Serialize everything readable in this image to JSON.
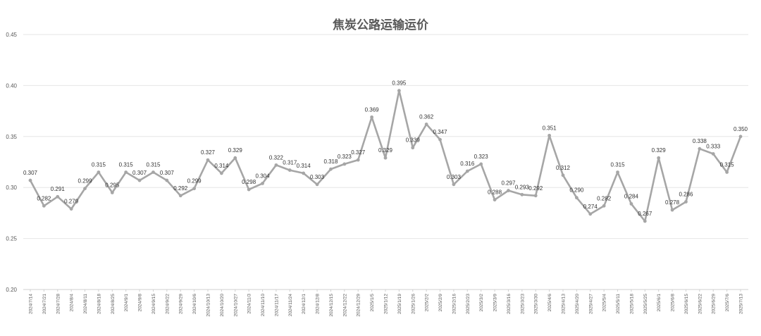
{
  "chart_data": {
    "type": "line",
    "title": "焦炭公路运输运价",
    "xlabel": "",
    "ylabel": "",
    "ylim": [
      0.2,
      0.45
    ],
    "yticks": [
      "0.20",
      "0.25",
      "0.30",
      "0.35",
      "0.40",
      "0.45"
    ],
    "grid": true,
    "legend": "none",
    "line_color": "#a6a6a6",
    "categories": [
      "2024/7/14",
      "2024/7/21",
      "2024/7/28",
      "2024/8/4",
      "2024/8/11",
      "2024/8/18",
      "2024/8/25",
      "2024/9/1",
      "2024/9/8",
      "2024/9/15",
      "2024/9/22",
      "2024/9/29",
      "2024/10/6",
      "2024/10/13",
      "2024/10/20",
      "2024/10/27",
      "2024/11/3",
      "2024/11/10",
      "2024/11/17",
      "2024/11/24",
      "2024/12/1",
      "2024/12/8",
      "2024/12/15",
      "2024/12/22",
      "2024/12/29",
      "2025/1/5",
      "2025/1/12",
      "2025/1/19",
      "2025/1/26",
      "2025/2/2",
      "2025/2/9",
      "2025/2/16",
      "2025/2/23",
      "2025/3/2",
      "2025/3/9",
      "2025/3/16",
      "2025/3/23",
      "2025/3/30",
      "2025/4/6",
      "2025/4/13",
      "2025/4/20",
      "2025/4/27",
      "2025/5/4",
      "2025/5/11",
      "2025/5/18",
      "2025/5/25",
      "2025/6/1",
      "2025/6/8",
      "2025/6/15",
      "2025/6/22",
      "2025/6/29",
      "2025/7/6",
      "2025/7/13"
    ],
    "values": [
      0.307,
      0.282,
      0.291,
      0.279,
      0.299,
      0.315,
      0.295,
      0.315,
      0.307,
      0.315,
      0.307,
      0.292,
      0.299,
      0.327,
      0.314,
      0.329,
      0.298,
      0.304,
      0.322,
      0.317,
      0.314,
      0.303,
      0.318,
      0.323,
      0.327,
      0.369,
      0.329,
      0.395,
      0.339,
      0.362,
      0.347,
      0.303,
      0.316,
      0.323,
      0.288,
      0.297,
      0.293,
      0.292,
      0.351,
      0.312,
      0.29,
      0.274,
      0.282,
      0.315,
      0.284,
      0.267,
      0.329,
      0.278,
      0.286,
      0.338,
      0.333,
      0.315,
      0.35
    ],
    "labels": [
      "0.307",
      "0.282",
      "0.291",
      "0.279",
      "0.299",
      "0.315",
      "0.295",
      "0.315",
      "0.307",
      "0.315",
      "0.307",
      "0.292",
      "0.299",
      "0.327",
      "0.314",
      "0.329",
      "0.298",
      "0.304",
      "0.322",
      "0.317",
      "0.314",
      "0.303",
      "0.318",
      "0.323",
      "0.327",
      "0.369",
      "0.329",
      "0.395",
      "0.339",
      "0.362",
      "0.347",
      "0.303",
      "0.316",
      "0.323",
      "0.288",
      "0.297",
      "0.293",
      "0.292",
      "0.351",
      "0.312",
      "0.290",
      "0.274",
      "0.282",
      "0.315",
      "0.284",
      "0.267",
      "0.329",
      "0.278",
      "0.286",
      "0.338",
      "0.333",
      "0.315",
      "0.350"
    ]
  }
}
